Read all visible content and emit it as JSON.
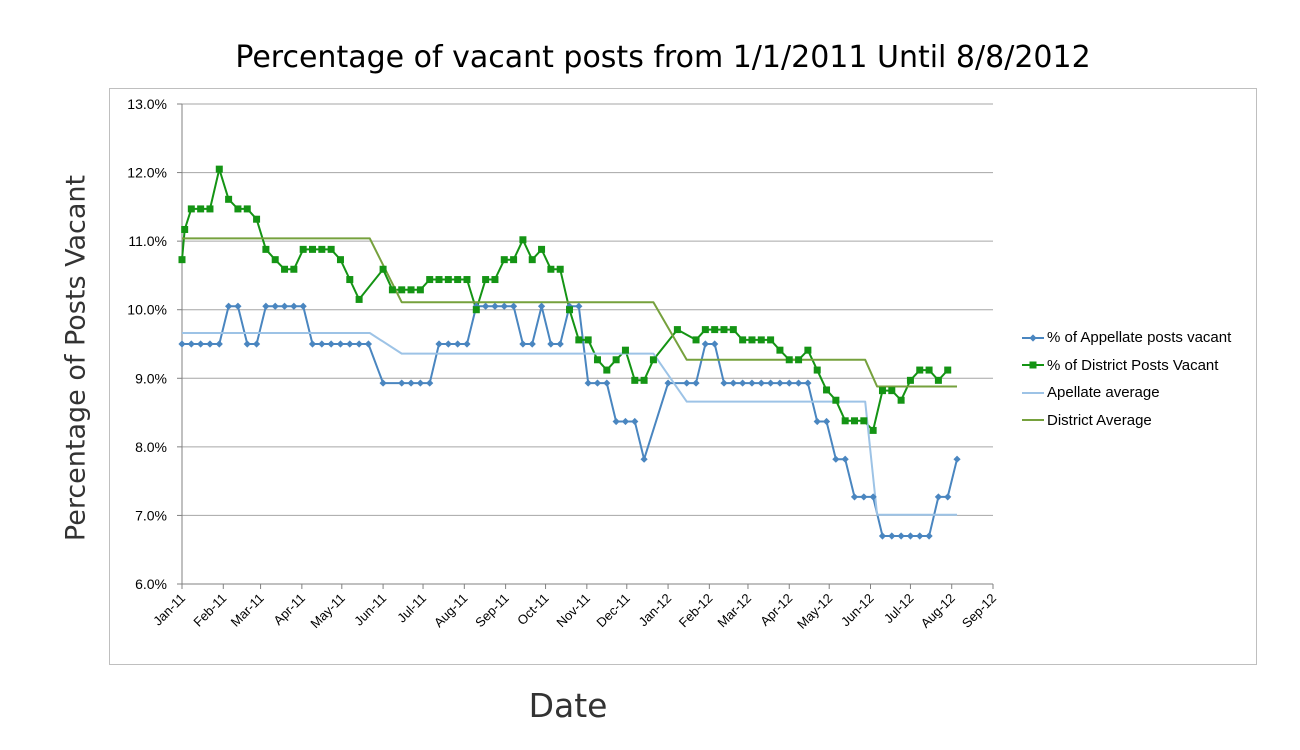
{
  "chart_data": {
    "type": "line",
    "title": "Percentage of vacant posts from 1/1/2011 Until 8/8/2012",
    "xlabel": "Date",
    "ylabel": "Percentage of Posts Vacant",
    "ylim": [
      6.0,
      13.0
    ],
    "y_unit": "%",
    "y_ticks": [
      "6.0%",
      "7.0%",
      "8.0%",
      "9.0%",
      "10.0%",
      "11.0%",
      "12.0%",
      "13.0%"
    ],
    "x_ticks": [
      "Jan-11",
      "Feb-11",
      "Mar-11",
      "Apr-11",
      "May-11",
      "Jun-11",
      "Jul-11",
      "Aug-11",
      "Sep-11",
      "Oct-11",
      "Nov-11",
      "Dec-11",
      "Jan-12",
      "Feb-12",
      "Mar-12",
      "Apr-12",
      "May-12",
      "Jun-12",
      "Jul-12",
      "Aug-12",
      "Sep-12"
    ],
    "x_tick_dates": [
      "2011-01-01",
      "2011-02-01",
      "2011-03-01",
      "2011-04-01",
      "2011-05-01",
      "2011-06-01",
      "2011-07-01",
      "2011-08-01",
      "2011-09-01",
      "2011-10-01",
      "2011-11-01",
      "2011-12-01",
      "2012-01-01",
      "2012-02-01",
      "2012-03-01",
      "2012-04-01",
      "2012-05-01",
      "2012-06-01",
      "2012-07-01",
      "2012-08-01",
      "2012-09-01"
    ],
    "grid": true,
    "legend_position": "right",
    "series": [
      {
        "name": "% of Appellate posts vacant",
        "color": "#4a86c0",
        "marker": "diamond",
        "points": [
          [
            "2011-01-01",
            9.5
          ],
          [
            "2011-01-08",
            9.5
          ],
          [
            "2011-01-15",
            9.5
          ],
          [
            "2011-01-22",
            9.5
          ],
          [
            "2011-01-29",
            9.5
          ],
          [
            "2011-02-05",
            10.05
          ],
          [
            "2011-02-12",
            10.05
          ],
          [
            "2011-02-19",
            9.5
          ],
          [
            "2011-02-26",
            9.5
          ],
          [
            "2011-03-05",
            10.05
          ],
          [
            "2011-03-12",
            10.05
          ],
          [
            "2011-03-19",
            10.05
          ],
          [
            "2011-03-26",
            10.05
          ],
          [
            "2011-04-02",
            10.05
          ],
          [
            "2011-04-09",
            9.5
          ],
          [
            "2011-04-16",
            9.5
          ],
          [
            "2011-04-23",
            9.5
          ],
          [
            "2011-04-30",
            9.5
          ],
          [
            "2011-05-07",
            9.5
          ],
          [
            "2011-05-14",
            9.5
          ],
          [
            "2011-05-21",
            9.5
          ],
          [
            "2011-06-01",
            8.93
          ],
          [
            "2011-06-15",
            8.93
          ],
          [
            "2011-06-22",
            8.93
          ],
          [
            "2011-06-29",
            8.93
          ],
          [
            "2011-07-06",
            8.93
          ],
          [
            "2011-07-13",
            9.5
          ],
          [
            "2011-07-20",
            9.5
          ],
          [
            "2011-07-27",
            9.5
          ],
          [
            "2011-08-03",
            9.5
          ],
          [
            "2011-08-10",
            10.05
          ],
          [
            "2011-08-17",
            10.05
          ],
          [
            "2011-08-24",
            10.05
          ],
          [
            "2011-08-31",
            10.05
          ],
          [
            "2011-09-07",
            10.05
          ],
          [
            "2011-09-14",
            9.5
          ],
          [
            "2011-09-21",
            9.5
          ],
          [
            "2011-09-28",
            10.05
          ],
          [
            "2011-10-05",
            9.5
          ],
          [
            "2011-10-12",
            9.5
          ],
          [
            "2011-10-19",
            10.05
          ],
          [
            "2011-10-26",
            10.05
          ],
          [
            "2011-11-02",
            8.93
          ],
          [
            "2011-11-09",
            8.93
          ],
          [
            "2011-11-16",
            8.93
          ],
          [
            "2011-11-23",
            8.37
          ],
          [
            "2011-11-30",
            8.37
          ],
          [
            "2011-12-07",
            8.37
          ],
          [
            "2011-12-14",
            7.82
          ],
          [
            "2012-01-01",
            8.93
          ],
          [
            "2012-01-15",
            8.93
          ],
          [
            "2012-01-22",
            8.93
          ],
          [
            "2012-01-29",
            9.5
          ],
          [
            "2012-02-05",
            9.5
          ],
          [
            "2012-02-12",
            8.93
          ],
          [
            "2012-02-19",
            8.93
          ],
          [
            "2012-02-26",
            8.93
          ],
          [
            "2012-03-04",
            8.93
          ],
          [
            "2012-03-11",
            8.93
          ],
          [
            "2012-03-18",
            8.93
          ],
          [
            "2012-03-25",
            8.93
          ],
          [
            "2012-04-01",
            8.93
          ],
          [
            "2012-04-08",
            8.93
          ],
          [
            "2012-04-15",
            8.93
          ],
          [
            "2012-04-22",
            8.37
          ],
          [
            "2012-04-29",
            8.37
          ],
          [
            "2012-05-06",
            7.82
          ],
          [
            "2012-05-13",
            7.82
          ],
          [
            "2012-05-20",
            7.27
          ],
          [
            "2012-05-27",
            7.27
          ],
          [
            "2012-06-03",
            7.27
          ],
          [
            "2012-06-10",
            6.7
          ],
          [
            "2012-06-17",
            6.7
          ],
          [
            "2012-06-24",
            6.7
          ],
          [
            "2012-07-01",
            6.7
          ],
          [
            "2012-07-08",
            6.7
          ],
          [
            "2012-07-15",
            6.7
          ],
          [
            "2012-07-22",
            7.27
          ],
          [
            "2012-07-29",
            7.27
          ],
          [
            "2012-08-05",
            7.82
          ]
        ]
      },
      {
        "name": "% of District Posts Vacant",
        "color": "#149414",
        "marker": "square",
        "points": [
          [
            "2011-01-01",
            10.73
          ],
          [
            "2011-01-03",
            11.17
          ],
          [
            "2011-01-08",
            11.47
          ],
          [
            "2011-01-15",
            11.47
          ],
          [
            "2011-01-22",
            11.47
          ],
          [
            "2011-01-29",
            12.05
          ],
          [
            "2011-02-05",
            11.61
          ],
          [
            "2011-02-12",
            11.47
          ],
          [
            "2011-02-19",
            11.47
          ],
          [
            "2011-02-26",
            11.32
          ],
          [
            "2011-03-05",
            10.88
          ],
          [
            "2011-03-12",
            10.73
          ],
          [
            "2011-03-19",
            10.59
          ],
          [
            "2011-03-26",
            10.59
          ],
          [
            "2011-04-02",
            10.88
          ],
          [
            "2011-04-09",
            10.88
          ],
          [
            "2011-04-16",
            10.88
          ],
          [
            "2011-04-23",
            10.88
          ],
          [
            "2011-04-30",
            10.73
          ],
          [
            "2011-05-07",
            10.44
          ],
          [
            "2011-05-14",
            10.15
          ],
          [
            "2011-06-01",
            10.59
          ],
          [
            "2011-06-08",
            10.29
          ],
          [
            "2011-06-15",
            10.29
          ],
          [
            "2011-06-22",
            10.29
          ],
          [
            "2011-06-29",
            10.29
          ],
          [
            "2011-07-06",
            10.44
          ],
          [
            "2011-07-13",
            10.44
          ],
          [
            "2011-07-20",
            10.44
          ],
          [
            "2011-07-27",
            10.44
          ],
          [
            "2011-08-03",
            10.44
          ],
          [
            "2011-08-10",
            10.0
          ],
          [
            "2011-08-17",
            10.44
          ],
          [
            "2011-08-24",
            10.44
          ],
          [
            "2011-08-31",
            10.73
          ],
          [
            "2011-09-07",
            10.73
          ],
          [
            "2011-09-14",
            11.02
          ],
          [
            "2011-09-21",
            10.73
          ],
          [
            "2011-09-28",
            10.88
          ],
          [
            "2011-10-05",
            10.59
          ],
          [
            "2011-10-12",
            10.59
          ],
          [
            "2011-10-19",
            10.0
          ],
          [
            "2011-10-26",
            9.56
          ],
          [
            "2011-11-02",
            9.56
          ],
          [
            "2011-11-09",
            9.27
          ],
          [
            "2011-11-16",
            9.12
          ],
          [
            "2011-11-23",
            9.27
          ],
          [
            "2011-11-30",
            9.41
          ],
          [
            "2011-12-07",
            8.97
          ],
          [
            "2011-12-14",
            8.97
          ],
          [
            "2011-12-21",
            9.27
          ],
          [
            "2012-01-08",
            9.71
          ],
          [
            "2012-01-22",
            9.56
          ],
          [
            "2012-01-29",
            9.71
          ],
          [
            "2012-02-05",
            9.71
          ],
          [
            "2012-02-12",
            9.71
          ],
          [
            "2012-02-19",
            9.71
          ],
          [
            "2012-02-26",
            9.56
          ],
          [
            "2012-03-04",
            9.56
          ],
          [
            "2012-03-11",
            9.56
          ],
          [
            "2012-03-18",
            9.56
          ],
          [
            "2012-03-25",
            9.41
          ],
          [
            "2012-04-01",
            9.27
          ],
          [
            "2012-04-08",
            9.27
          ],
          [
            "2012-04-15",
            9.41
          ],
          [
            "2012-04-22",
            9.12
          ],
          [
            "2012-04-29",
            8.83
          ],
          [
            "2012-05-06",
            8.68
          ],
          [
            "2012-05-13",
            8.38
          ],
          [
            "2012-05-20",
            8.38
          ],
          [
            "2012-05-27",
            8.38
          ],
          [
            "2012-06-03",
            8.24
          ],
          [
            "2012-06-10",
            8.82
          ],
          [
            "2012-06-17",
            8.82
          ],
          [
            "2012-06-24",
            8.68
          ],
          [
            "2012-07-01",
            8.97
          ],
          [
            "2012-07-08",
            9.12
          ],
          [
            "2012-07-15",
            9.12
          ],
          [
            "2012-07-22",
            8.97
          ],
          [
            "2012-07-29",
            9.12
          ]
        ]
      },
      {
        "name": "Apellate average",
        "color": "#9dc3e6",
        "marker": "none",
        "points": [
          [
            "2011-01-01",
            9.66
          ],
          [
            "2011-05-22",
            9.66
          ],
          [
            "2011-06-15",
            9.36
          ],
          [
            "2011-12-21",
            9.36
          ],
          [
            "2012-01-15",
            8.66
          ],
          [
            "2012-05-28",
            8.66
          ],
          [
            "2012-06-06",
            7.01
          ],
          [
            "2012-08-05",
            7.01
          ]
        ]
      },
      {
        "name": "District Average",
        "color": "#76a13d",
        "marker": "none",
        "points": [
          [
            "2011-01-01",
            11.04
          ],
          [
            "2011-05-22",
            11.04
          ],
          [
            "2011-06-15",
            10.11
          ],
          [
            "2011-12-21",
            10.11
          ],
          [
            "2012-01-15",
            9.27
          ],
          [
            "2012-05-28",
            9.27
          ],
          [
            "2012-06-06",
            8.88
          ],
          [
            "2012-08-05",
            8.88
          ]
        ]
      }
    ]
  }
}
